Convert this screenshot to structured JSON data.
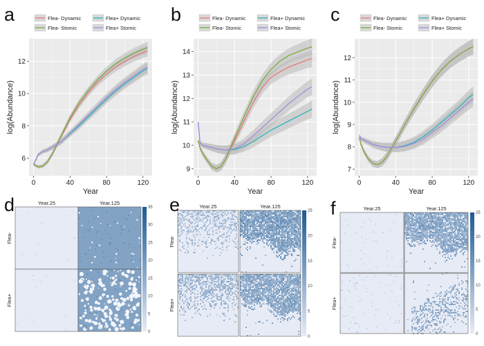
{
  "colors": {
    "flea_minus_dynamic": "#e8777a",
    "flea_minus_stomic": "#7aab3c",
    "flea_plus_dynamic": "#2cb3b8",
    "flea_plus_stomic": "#a58be0",
    "panel_bg": "#ebebeb",
    "grid": "#ffffff",
    "ribbon": "#b9b9b9",
    "heat_low": "#e7ebf5",
    "heat_high": "#1f5a93"
  },
  "chart_data": [
    {
      "panel": "a",
      "type": "line",
      "xlabel": "Year",
      "ylabel": "log(Abundance)",
      "xlim": [
        -5,
        130
      ],
      "ylim": [
        4.9,
        13.4
      ],
      "xticks": [
        0,
        40,
        80,
        120
      ],
      "yticks": [
        6,
        8,
        10,
        12
      ],
      "legend_position": "top",
      "legend": [
        "Flea- Dynamic",
        "Flea+ Dynamic",
        "Flea- Stomic",
        "Flea+ Stomic"
      ],
      "x": [
        0,
        5,
        10,
        15,
        20,
        30,
        40,
        50,
        60,
        70,
        80,
        90,
        100,
        110,
        120,
        125
      ],
      "series": [
        {
          "name": "Flea- Dynamic",
          "color_key": "flea_minus_dynamic",
          "values": [
            5.6,
            5.45,
            5.5,
            5.75,
            6.2,
            7.3,
            8.4,
            9.3,
            10.05,
            10.7,
            11.2,
            11.65,
            12.0,
            12.3,
            12.55,
            12.65
          ]
        },
        {
          "name": "Flea- Stomic",
          "color_key": "flea_minus_stomic",
          "values": [
            5.6,
            5.45,
            5.5,
            5.75,
            6.2,
            7.35,
            8.5,
            9.45,
            10.2,
            10.85,
            11.4,
            11.85,
            12.2,
            12.5,
            12.75,
            12.85
          ]
        },
        {
          "name": "Flea+ Dynamic",
          "color_key": "flea_plus_dynamic",
          "values": [
            5.6,
            6.2,
            6.4,
            6.5,
            6.65,
            7.0,
            7.5,
            8.0,
            8.55,
            9.1,
            9.65,
            10.15,
            10.6,
            11.0,
            11.4,
            11.55
          ]
        },
        {
          "name": "Flea+ Stomic",
          "color_key": "flea_plus_stomic",
          "values": [
            5.6,
            6.2,
            6.4,
            6.5,
            6.65,
            7.0,
            7.55,
            8.1,
            8.65,
            9.2,
            9.75,
            10.25,
            10.7,
            11.1,
            11.5,
            11.65
          ]
        }
      ]
    },
    {
      "panel": "b",
      "type": "line",
      "xlabel": "Year",
      "ylabel": "log(Abundance)",
      "xlim": [
        -5,
        130
      ],
      "ylim": [
        8.7,
        14.55
      ],
      "xticks": [
        0,
        40,
        80,
        120
      ],
      "yticks": [
        9,
        10,
        11,
        12,
        13,
        14
      ],
      "legend_position": "top",
      "legend": [
        "Flea- Dynamic",
        "Flea+ Dynamic",
        "Flea- Stomic",
        "Flea+ Stomic"
      ],
      "x": [
        0,
        2,
        5,
        10,
        15,
        20,
        25,
        30,
        40,
        50,
        60,
        70,
        80,
        90,
        100,
        110,
        120,
        125
      ],
      "series": [
        {
          "name": "Flea- Dynamic",
          "color_key": "flea_minus_dynamic",
          "values": [
            10.2,
            9.9,
            9.65,
            9.35,
            9.1,
            9.0,
            9.1,
            9.4,
            10.2,
            11.0,
            11.8,
            12.45,
            12.9,
            13.15,
            13.35,
            13.5,
            13.65,
            13.7
          ]
        },
        {
          "name": "Flea- Stomic",
          "color_key": "flea_minus_stomic",
          "values": [
            10.2,
            9.9,
            9.65,
            9.35,
            9.1,
            9.0,
            9.1,
            9.4,
            10.3,
            11.2,
            12.05,
            12.75,
            13.25,
            13.6,
            13.85,
            14.0,
            14.15,
            14.2
          ]
        },
        {
          "name": "Flea+ Dynamic",
          "color_key": "flea_plus_dynamic",
          "values": [
            11.0,
            10.1,
            10.0,
            9.95,
            9.9,
            9.85,
            9.82,
            9.8,
            9.82,
            9.95,
            10.15,
            10.4,
            10.65,
            10.85,
            11.05,
            11.25,
            11.45,
            11.55
          ]
        },
        {
          "name": "Flea+ Stomic",
          "color_key": "flea_plus_stomic",
          "values": [
            11.0,
            10.1,
            10.0,
            9.95,
            9.9,
            9.85,
            9.82,
            9.8,
            9.85,
            10.05,
            10.4,
            10.75,
            11.1,
            11.45,
            11.8,
            12.1,
            12.4,
            12.5
          ]
        }
      ]
    },
    {
      "panel": "c",
      "type": "line",
      "xlabel": "Year",
      "ylabel": "log(Abundance)",
      "xlim": [
        -5,
        130
      ],
      "ylim": [
        6.7,
        12.85
      ],
      "xticks": [
        0,
        40,
        80,
        120
      ],
      "yticks": [
        7,
        8,
        9,
        10,
        11,
        12
      ],
      "legend_position": "top",
      "legend": [
        "Flea- Dynamic",
        "Flea+ Dynamic",
        "Flea- Stomic",
        "Flea+ Stomic"
      ],
      "x": [
        0,
        2,
        5,
        10,
        15,
        20,
        25,
        30,
        40,
        50,
        60,
        70,
        80,
        90,
        100,
        110,
        120,
        125
      ],
      "series": [
        {
          "name": "Flea- Dynamic",
          "color_key": "flea_minus_dynamic",
          "values": [
            8.4,
            8.1,
            7.8,
            7.45,
            7.25,
            7.2,
            7.3,
            7.55,
            8.25,
            9.0,
            9.7,
            10.35,
            10.95,
            11.45,
            11.85,
            12.15,
            12.4,
            12.5
          ]
        },
        {
          "name": "Flea- Stomic",
          "color_key": "flea_minus_stomic",
          "values": [
            8.4,
            8.1,
            7.8,
            7.45,
            7.25,
            7.2,
            7.3,
            7.55,
            8.25,
            9.0,
            9.7,
            10.35,
            10.95,
            11.45,
            11.85,
            12.15,
            12.4,
            12.5
          ]
        },
        {
          "name": "Flea+ Dynamic",
          "color_key": "flea_plus_dynamic",
          "values": [
            8.5,
            8.35,
            8.3,
            8.2,
            8.1,
            8.05,
            8.0,
            7.98,
            7.97,
            8.05,
            8.2,
            8.45,
            8.75,
            9.1,
            9.45,
            9.8,
            10.2,
            10.35
          ]
        },
        {
          "name": "Flea+ Stomic",
          "color_key": "flea_plus_stomic",
          "values": [
            8.5,
            8.35,
            8.3,
            8.2,
            8.1,
            8.05,
            8.0,
            7.98,
            7.96,
            8.02,
            8.15,
            8.35,
            8.65,
            8.95,
            9.3,
            9.65,
            10.0,
            10.15
          ]
        }
      ]
    },
    {
      "panel": "d",
      "type": "heatmap",
      "columns": [
        "Year.25",
        "Year.125"
      ],
      "rows": [
        "Flea-",
        "Flea+"
      ],
      "colorbar_range": [
        0,
        35
      ],
      "colorbar_ticks": [
        0,
        5,
        10,
        15,
        20,
        25,
        30,
        35
      ],
      "cells": [
        {
          "row": 0,
          "col": 0,
          "pattern": "sparse",
          "density": 0.012,
          "level": 0.12
        },
        {
          "row": 0,
          "col": 1,
          "pattern": "dense",
          "density": 0.97,
          "level": 0.5
        },
        {
          "row": 1,
          "col": 0,
          "pattern": "sparse",
          "density": 0.01,
          "level": 0.12
        },
        {
          "row": 1,
          "col": 1,
          "pattern": "holes",
          "density": 0.75,
          "level": 0.5
        }
      ]
    },
    {
      "panel": "e",
      "type": "heatmap",
      "columns": [
        "Year.25",
        "Year.125"
      ],
      "rows": [
        "Flea-",
        "Flea+"
      ],
      "colorbar_range": [
        0,
        25
      ],
      "colorbar_ticks": [
        0,
        5,
        10,
        15,
        20,
        25
      ],
      "cells": [
        {
          "row": 0,
          "col": 0,
          "pattern": "gradient-top",
          "density": 0.55,
          "level": 0.3
        },
        {
          "row": 0,
          "col": 1,
          "pattern": "front-top",
          "density": 0.9,
          "level": 0.5
        },
        {
          "row": 1,
          "col": 0,
          "pattern": "gradient-top",
          "density": 0.7,
          "level": 0.35
        },
        {
          "row": 1,
          "col": 1,
          "pattern": "front-top",
          "density": 0.85,
          "level": 0.45
        }
      ]
    },
    {
      "panel": "f",
      "type": "heatmap",
      "columns": [
        "Year.25",
        "Year.125"
      ],
      "rows": [
        "Flea-",
        "Flea+"
      ],
      "colorbar_range": [
        0,
        25
      ],
      "colorbar_ticks": [
        0,
        5,
        10,
        15,
        20,
        25
      ],
      "cells": [
        {
          "row": 0,
          "col": 0,
          "pattern": "sparse",
          "density": 0.04,
          "level": 0.25
        },
        {
          "row": 0,
          "col": 1,
          "pattern": "front-top",
          "density": 0.85,
          "level": 0.45
        },
        {
          "row": 1,
          "col": 0,
          "pattern": "sparse",
          "density": 0.08,
          "level": 0.25
        },
        {
          "row": 1,
          "col": 1,
          "pattern": "diagonal",
          "density": 0.5,
          "level": 0.4
        }
      ]
    }
  ]
}
